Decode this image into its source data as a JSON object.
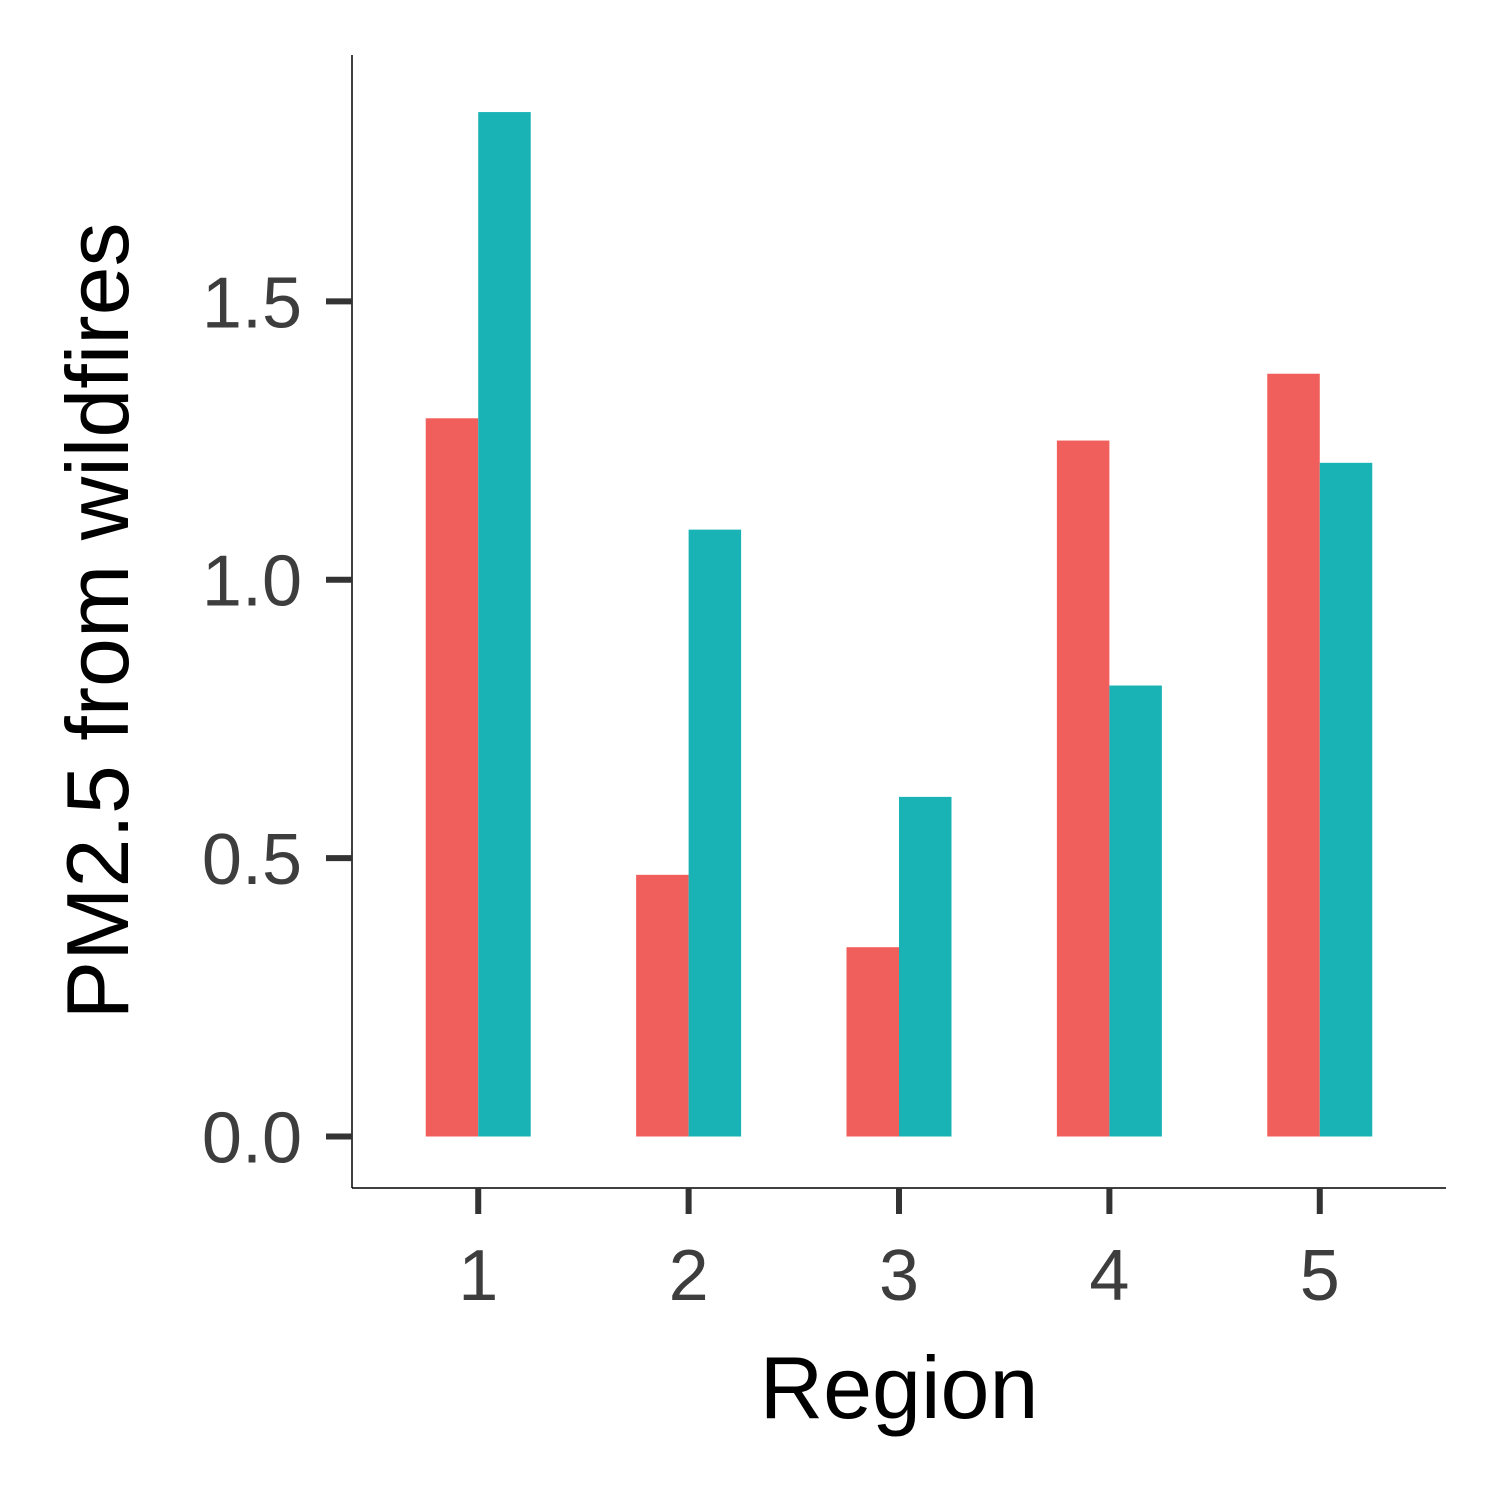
{
  "chart_data": {
    "type": "bar",
    "xlabel": "Region",
    "ylabel": "PM2.5 from wildfires",
    "categories": [
      "1",
      "2",
      "3",
      "4",
      "5"
    ],
    "series": [
      {
        "values": [
          1.29,
          0.47,
          0.34,
          1.25,
          1.37
        ],
        "color": "#f15f5c"
      },
      {
        "values": [
          1.84,
          1.09,
          0.61,
          0.81,
          1.21
        ],
        "color": "#19b3b6"
      }
    ],
    "yticks": [
      {
        "value": 0.0,
        "label": "0.0"
      },
      {
        "value": 0.5,
        "label": "0.5"
      },
      {
        "value": 1.0,
        "label": "1.0"
      },
      {
        "value": 1.5,
        "label": "1.5"
      }
    ],
    "ylim": [
      -0.0925,
      1.9425
    ],
    "grid": false,
    "legend": "none"
  }
}
